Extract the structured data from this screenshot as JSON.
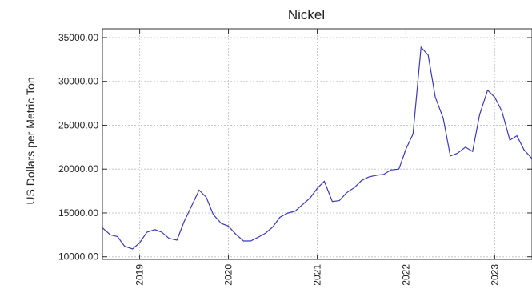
{
  "chart_data": {
    "type": "line",
    "title": "Nickel",
    "xlabel": "",
    "ylabel": "US Dollars per Metric Ton",
    "ylim": [
      9700,
      36000
    ],
    "xlim": [
      2018.58,
      2023.42
    ],
    "yticks": [
      10000,
      15000,
      20000,
      25000,
      30000,
      35000
    ],
    "ytick_labels": [
      "10000.00",
      "15000.00",
      "20000.00",
      "25000.00",
      "30000.00",
      "35000.00"
    ],
    "xticks": [
      2019,
      2020,
      2021,
      2022,
      2023
    ],
    "xtick_labels": [
      "2019",
      "2020",
      "2021",
      "2022",
      "2023"
    ],
    "grid": true,
    "series": [
      {
        "color": "#3a3ab8",
        "x": [
          2018.58,
          2018.67,
          2018.75,
          2018.83,
          2018.92,
          2019.0,
          2019.08,
          2019.17,
          2019.25,
          2019.33,
          2019.42,
          2019.5,
          2019.58,
          2019.67,
          2019.75,
          2019.83,
          2019.92,
          2020.0,
          2020.08,
          2020.17,
          2020.25,
          2020.33,
          2020.42,
          2020.5,
          2020.58,
          2020.67,
          2020.75,
          2020.83,
          2020.92,
          2021.0,
          2021.08,
          2021.17,
          2021.25,
          2021.33,
          2021.42,
          2021.5,
          2021.58,
          2021.67,
          2021.75,
          2021.83,
          2021.92,
          2022.0,
          2022.08,
          2022.17,
          2022.25,
          2022.33,
          2022.42,
          2022.5,
          2022.58,
          2022.67,
          2022.75,
          2022.83,
          2022.92,
          2023.0,
          2023.08,
          2023.17,
          2023.25,
          2023.33,
          2023.42
        ],
        "values": [
          13300,
          12500,
          12300,
          11200,
          10900,
          11600,
          12800,
          13100,
          12800,
          12100,
          11900,
          14000,
          15700,
          17600,
          16800,
          14800,
          13800,
          13500,
          12600,
          11800,
          11800,
          12200,
          12700,
          13400,
          14500,
          15000,
          15200,
          15900,
          16700,
          17800,
          18600,
          16300,
          16400,
          17300,
          17900,
          18700,
          19100,
          19300,
          19400,
          19900,
          20000,
          22300,
          24000,
          33900,
          33000,
          28200,
          25800,
          21500,
          21800,
          22500,
          22000,
          26200,
          29000,
          28200,
          26600,
          23300,
          23800,
          22200,
          21200
        ]
      }
    ]
  }
}
